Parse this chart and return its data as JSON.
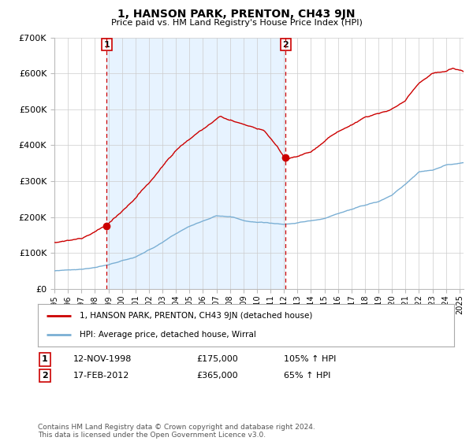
{
  "title": "1, HANSON PARK, PRENTON, CH43 9JN",
  "subtitle": "Price paid vs. HM Land Registry's House Price Index (HPI)",
  "legend_line1": "1, HANSON PARK, PRENTON, CH43 9JN (detached house)",
  "legend_line2": "HPI: Average price, detached house, Wirral",
  "table_row1": [
    "1",
    "12-NOV-1998",
    "£175,000",
    "105% ↑ HPI"
  ],
  "table_row2": [
    "2",
    "17-FEB-2012",
    "£365,000",
    "65% ↑ HPI"
  ],
  "footnote": "Contains HM Land Registry data © Crown copyright and database right 2024.\nThis data is licensed under the Open Government Licence v3.0.",
  "ylim": [
    0,
    700000
  ],
  "yticks": [
    0,
    100000,
    200000,
    300000,
    400000,
    500000,
    600000,
    700000
  ],
  "ytick_labels": [
    "£0",
    "£100K",
    "£200K",
    "£300K",
    "£400K",
    "£500K",
    "£600K",
    "£700K"
  ],
  "red_color": "#cc0000",
  "blue_color": "#7aafd4",
  "shade_color": "#ddeeff",
  "marker1_x": 1998.87,
  "marker1_y": 175000,
  "marker2_x": 2012.12,
  "marker2_y": 365000,
  "vline1_x": 1998.87,
  "vline2_x": 2012.12,
  "xmin": 1995,
  "xmax": 2025.3
}
